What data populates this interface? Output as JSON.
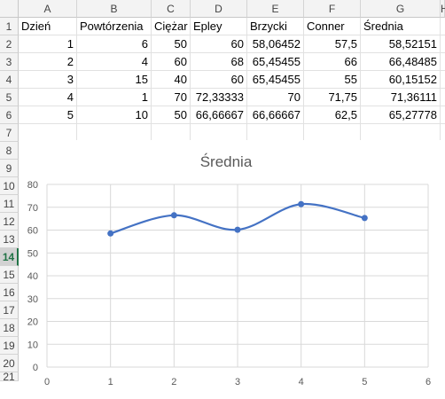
{
  "columns": [
    "A",
    "B",
    "C",
    "D",
    "E",
    "F",
    "G",
    "H"
  ],
  "rows": [
    "1",
    "2",
    "3",
    "4",
    "5",
    "6",
    "7",
    "8",
    "9",
    "10",
    "11",
    "12",
    "13",
    "14",
    "15",
    "16",
    "17",
    "18",
    "19",
    "20",
    "21"
  ],
  "selected_row": "14",
  "table": {
    "headers": [
      "Dzień",
      "Powtórzenia",
      "Ciężar",
      "Epley",
      "Brzycki",
      "Conner",
      "Średnia"
    ],
    "rows": [
      [
        "1",
        "6",
        "50",
        "60",
        "58,06452",
        "57,5",
        "58,52151"
      ],
      [
        "2",
        "4",
        "60",
        "68",
        "65,45455",
        "66",
        "66,48485"
      ],
      [
        "3",
        "15",
        "40",
        "60",
        "65,45455",
        "55",
        "60,15152"
      ],
      [
        "4",
        "1",
        "70",
        "72,33333",
        "70",
        "71,75",
        "71,36111"
      ],
      [
        "5",
        "10",
        "50",
        "66,66667",
        "66,66667",
        "62,5",
        "65,27778"
      ]
    ]
  },
  "chart_data": {
    "type": "line",
    "title": "Średnia",
    "xlabel": "",
    "ylabel": "",
    "x": [
      1,
      2,
      3,
      4,
      5
    ],
    "series": [
      {
        "name": "Średnia",
        "values": [
          58.52151,
          66.48485,
          60.15152,
          71.36111,
          65.27778
        ],
        "color": "#4472c4"
      }
    ],
    "xlim": [
      0,
      6
    ],
    "ylim": [
      0,
      80
    ],
    "xticks": [
      "0",
      "1",
      "2",
      "3",
      "4",
      "5",
      "6"
    ],
    "yticks": [
      "0",
      "10",
      "20",
      "30",
      "40",
      "50",
      "60",
      "70",
      "80"
    ],
    "grid": true,
    "smooth": true,
    "legend": "none"
  }
}
